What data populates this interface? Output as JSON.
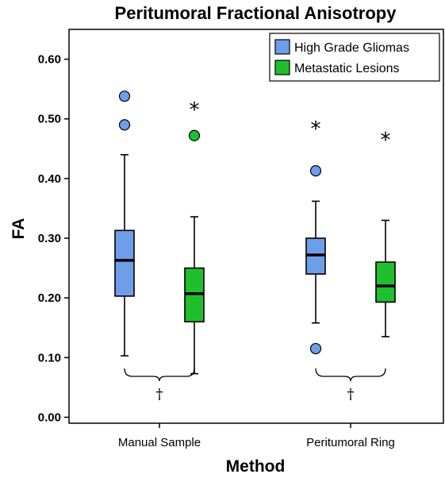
{
  "chart_data": {
    "type": "box",
    "title": "Peritumoral Fractional Anisotropy",
    "xlabel": "Method",
    "ylabel": "FA",
    "ylim": [
      -0.01,
      0.65
    ],
    "yticks": [
      "0.00",
      "0.10",
      "0.20",
      "0.30",
      "0.40",
      "0.50",
      "0.60"
    ],
    "categories": [
      "Manual Sample",
      "Peritumoral Ring"
    ],
    "series": [
      {
        "name": "High Grade Gliomas",
        "color": "#6f9ee8",
        "boxes": [
          {
            "category": "Manual Sample",
            "whisker_low": 0.103,
            "q1": 0.203,
            "median": 0.263,
            "q3": 0.313,
            "whisker_high": 0.44,
            "outliers": [
              {
                "value": 0.49,
                "marker": "circle"
              },
              {
                "value": 0.538,
                "marker": "circle"
              }
            ]
          },
          {
            "category": "Peritumoral Ring",
            "whisker_low": 0.158,
            "q1": 0.24,
            "median": 0.272,
            "q3": 0.3,
            "whisker_high": 0.362,
            "outliers": [
              {
                "value": 0.115,
                "marker": "circle"
              },
              {
                "value": 0.413,
                "marker": "circle"
              },
              {
                "value": 0.49,
                "marker": "star"
              }
            ]
          }
        ]
      },
      {
        "name": "Metastatic Lesions",
        "color": "#1fbf2e",
        "boxes": [
          {
            "category": "Manual Sample",
            "whisker_low": 0.073,
            "q1": 0.16,
            "median": 0.207,
            "q3": 0.25,
            "whisker_high": 0.336,
            "outliers": [
              {
                "value": 0.472,
                "marker": "circle"
              },
              {
                "value": 0.522,
                "marker": "star"
              }
            ]
          },
          {
            "category": "Peritumoral Ring",
            "whisker_low": 0.135,
            "q1": 0.193,
            "median": 0.22,
            "q3": 0.26,
            "whisker_high": 0.33,
            "outliers": [
              {
                "value": 0.472,
                "marker": "star"
              }
            ]
          }
        ]
      }
    ],
    "annotations": [
      {
        "category": "Manual Sample",
        "text": "†"
      },
      {
        "category": "Peritumoral Ring",
        "text": "†"
      }
    ],
    "legend_position": "top-right",
    "grid": false
  }
}
